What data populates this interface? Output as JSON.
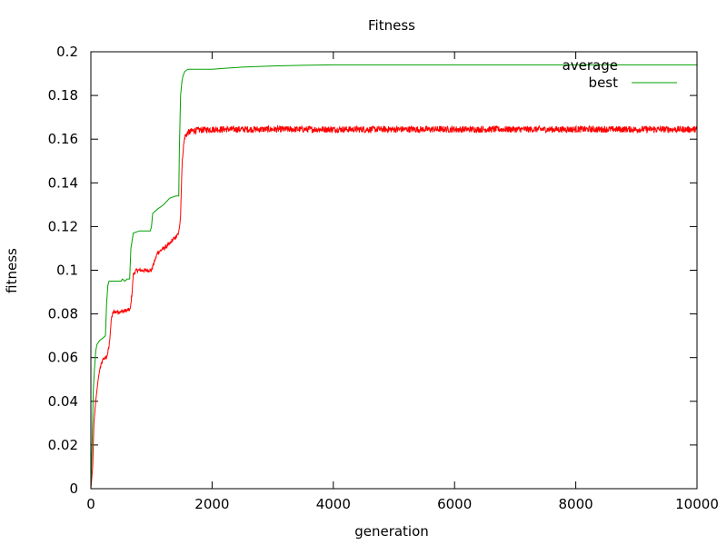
{
  "chart_data": {
    "type": "line",
    "title": "Fitness",
    "xlabel": "generation",
    "ylabel": "fitness",
    "xlim": [
      0,
      10000
    ],
    "ylim": [
      0,
      0.2
    ],
    "x_ticks": [
      0,
      2000,
      4000,
      6000,
      8000,
      10000
    ],
    "x_tick_labels": [
      "0",
      "2000",
      "4000",
      "6000",
      "8000",
      "10000"
    ],
    "y_ticks": [
      0,
      0.02,
      0.04,
      0.06,
      0.08,
      0.1,
      0.12,
      0.14,
      0.16,
      0.18,
      0.2
    ],
    "y_tick_labels": [
      "0",
      "0.02",
      "0.04",
      "0.06",
      "0.08",
      "0.1",
      "0.12",
      "0.14",
      "0.16",
      "0.18",
      "0.2"
    ],
    "grid": false,
    "legend_position": "top-right",
    "series": [
      {
        "name": "average",
        "color": "#ff0000",
        "noise": 0.0015,
        "noise_start": 1500,
        "x": [
          0,
          30,
          50,
          80,
          100,
          120,
          150,
          200,
          230,
          260,
          300,
          340,
          360,
          380,
          400,
          500,
          650,
          680,
          700,
          750,
          800,
          900,
          1000,
          1050,
          1100,
          1200,
          1300,
          1350,
          1400,
          1450,
          1480,
          1500,
          1520,
          1550,
          1600,
          1700,
          2000,
          3000,
          4000,
          5000,
          6000,
          7000,
          8000,
          9000,
          10000
        ],
        "y": [
          0,
          0.01,
          0.03,
          0.04,
          0.045,
          0.05,
          0.055,
          0.059,
          0.06,
          0.06,
          0.065,
          0.078,
          0.08,
          0.081,
          0.081,
          0.081,
          0.082,
          0.09,
          0.098,
          0.1,
          0.1,
          0.1,
          0.1,
          0.104,
          0.108,
          0.11,
          0.112,
          0.114,
          0.115,
          0.117,
          0.125,
          0.145,
          0.155,
          0.161,
          0.163,
          0.164,
          0.1645,
          0.1645,
          0.1645,
          0.1645,
          0.1645,
          0.1645,
          0.1645,
          0.1645,
          0.1645
        ]
      },
      {
        "name": "best",
        "color": "#00a000",
        "noise": 0,
        "noise_start": 0,
        "x": [
          0,
          20,
          40,
          60,
          80,
          100,
          150,
          200,
          240,
          260,
          280,
          300,
          500,
          520,
          560,
          600,
          640,
          660,
          700,
          800,
          900,
          980,
          1000,
          1020,
          1100,
          1200,
          1300,
          1400,
          1450,
          1460,
          1480,
          1500,
          1520,
          1550,
          1600,
          2000,
          2500,
          3000,
          3500,
          4000,
          10000
        ],
        "y": [
          0,
          0.02,
          0.045,
          0.055,
          0.063,
          0.066,
          0.068,
          0.069,
          0.07,
          0.085,
          0.093,
          0.095,
          0.095,
          0.096,
          0.095,
          0.096,
          0.096,
          0.11,
          0.117,
          0.118,
          0.118,
          0.118,
          0.12,
          0.126,
          0.128,
          0.13,
          0.133,
          0.134,
          0.134,
          0.155,
          0.18,
          0.186,
          0.189,
          0.191,
          0.192,
          0.192,
          0.193,
          0.1935,
          0.1938,
          0.194,
          0.194
        ]
      }
    ]
  }
}
